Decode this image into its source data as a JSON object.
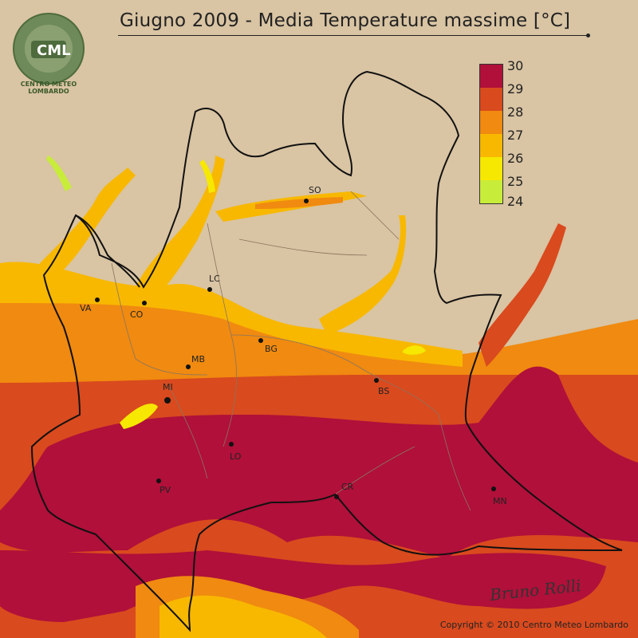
{
  "title": "Giugno 2009 - Media Temperature massime [°C]",
  "logo": {
    "ring_text": "CENTRO METEO LOMBARDO",
    "initials": "CML"
  },
  "legend": {
    "ticks": [
      "30",
      "29",
      "28",
      "27",
      "26",
      "25",
      "24"
    ],
    "bands": [
      {
        "range": "29-30",
        "color": "#b0103a"
      },
      {
        "range": "28-29",
        "color": "#d94a1e"
      },
      {
        "range": "27-28",
        "color": "#f08a10"
      },
      {
        "range": "26-27",
        "color": "#f8b800"
      },
      {
        "range": "25-26",
        "color": "#f6e800"
      },
      {
        "range": "24-25",
        "color": "#c8ec3a"
      }
    ]
  },
  "cities": [
    {
      "code": "SO"
    },
    {
      "code": "LC"
    },
    {
      "code": "VA"
    },
    {
      "code": "CO"
    },
    {
      "code": "BG"
    },
    {
      "code": "MB"
    },
    {
      "code": "MI"
    },
    {
      "code": "BS"
    },
    {
      "code": "LO"
    },
    {
      "code": "PV"
    },
    {
      "code": "CR"
    },
    {
      "code": "MN"
    }
  ],
  "copyright": "Copyright © 2010 Centro Meteo Lombardo",
  "signature": "Bruno Rolli"
}
